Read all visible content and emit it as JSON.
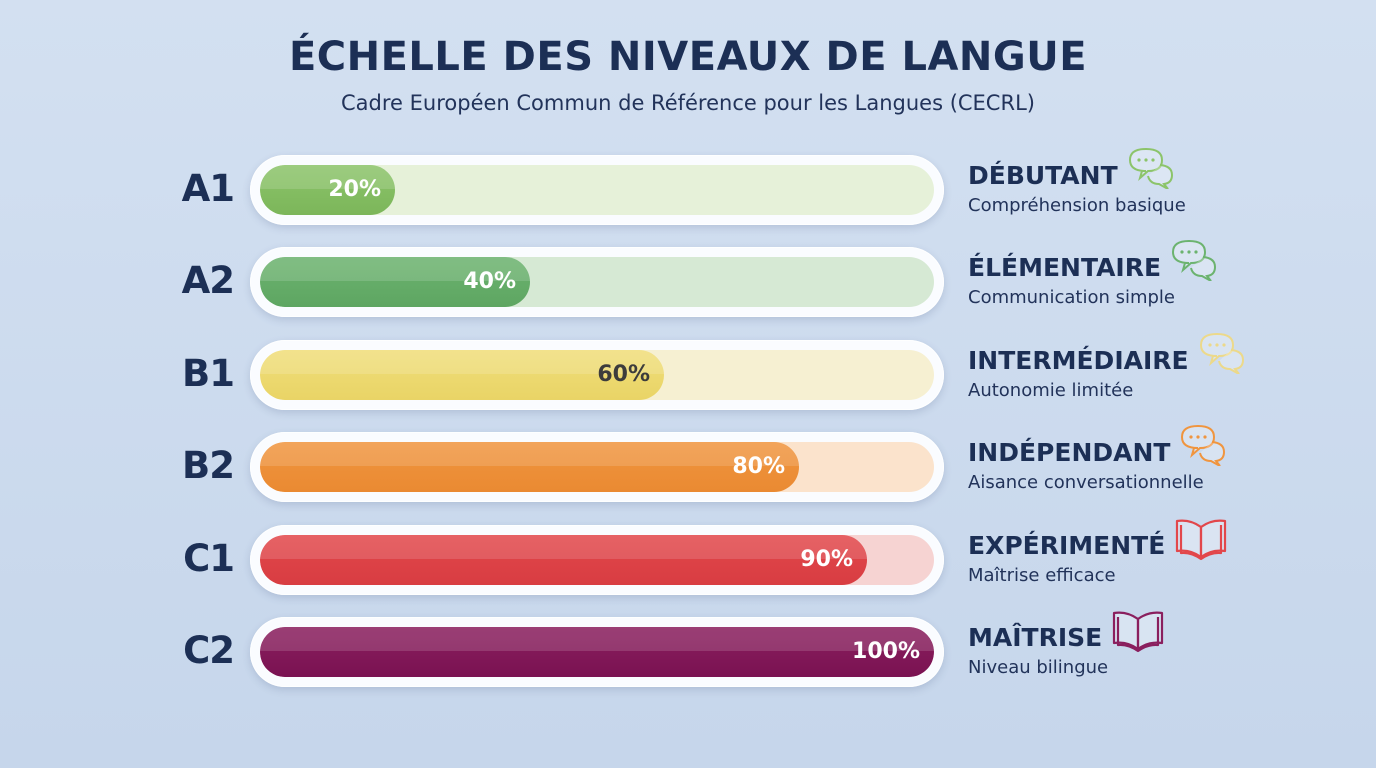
{
  "header": {
    "title": "ÉCHELLE DES NIVEAUX DE LANGUE",
    "subtitle": "Cadre Européen Commun de Référence pour les Langues (CECRL)"
  },
  "chart_data": {
    "type": "bar",
    "orientation": "horizontal",
    "title": "ÉCHELLE DES NIVEAUX DE LANGUE",
    "subtitle": "Cadre Européen Commun de Référence pour les Langues (CECRL)",
    "xlim": [
      0,
      100
    ],
    "grid": false,
    "categories": [
      "A1",
      "A2",
      "B1",
      "B2",
      "C1",
      "C2"
    ],
    "values": [
      20,
      40,
      60,
      80,
      90,
      100
    ],
    "data_labels": [
      "20%",
      "40%",
      "60%",
      "80%",
      "90%",
      "100%"
    ]
  },
  "levels": [
    {
      "code": "A1",
      "pct_label": "20%",
      "label": "DÉBUTANT",
      "desc": "Compréhension basique",
      "icon": "speech-bubbles-icon",
      "color": "#8cc46a",
      "color_dark": "#7cb65a",
      "track": "#e6f1d9",
      "icon_color": "#8cc46a",
      "text_color": "#ffffff"
    },
    {
      "code": "A2",
      "pct_label": "40%",
      "label": "ÉLÉMENTAIRE",
      "desc": "Communication simple",
      "icon": "speech-bubbles-icon",
      "color": "#6cb36f",
      "color_dark": "#5ea662",
      "track": "#d6e9d4",
      "icon_color": "#6cb36f",
      "text_color": "#ffffff"
    },
    {
      "code": "B1",
      "pct_label": "60%",
      "label": "INTERMÉDIAIRE",
      "desc": "Autonomie limitée",
      "icon": "speech-bubbles-icon",
      "color": "#f0de7a",
      "color_dark": "#e9d466",
      "track": "#f6f0d2",
      "icon_color": "#ecd98a",
      "text_color": "#3c3c3c"
    },
    {
      "code": "B2",
      "pct_label": "80%",
      "label": "INDÉPENDANT",
      "desc": "Aisance conversationnelle",
      "icon": "speech-bubbles-icon",
      "color": "#f0953f",
      "color_dark": "#ea8a32",
      "track": "#fbe3cc",
      "icon_color": "#f0953f",
      "text_color": "#ffffff"
    },
    {
      "code": "C1",
      "pct_label": "90%",
      "label": "EXPÉRIMENTÉ",
      "desc": "Maîtrise efficace",
      "icon": "open-book-icon",
      "color": "#e2474b",
      "color_dark": "#d83d42",
      "track": "#f6d3d2",
      "icon_color": "#e2474b",
      "text_color": "#ffffff"
    },
    {
      "code": "C2",
      "pct_label": "100%",
      "label": "MAÎTRISE",
      "desc": "Niveau bilingue",
      "icon": "open-book-icon",
      "color": "#8a1f5e",
      "color_dark": "#7a1252",
      "track": "#e8ccd9",
      "icon_color": "#8a1f5e",
      "text_color": "#ffffff"
    }
  ]
}
